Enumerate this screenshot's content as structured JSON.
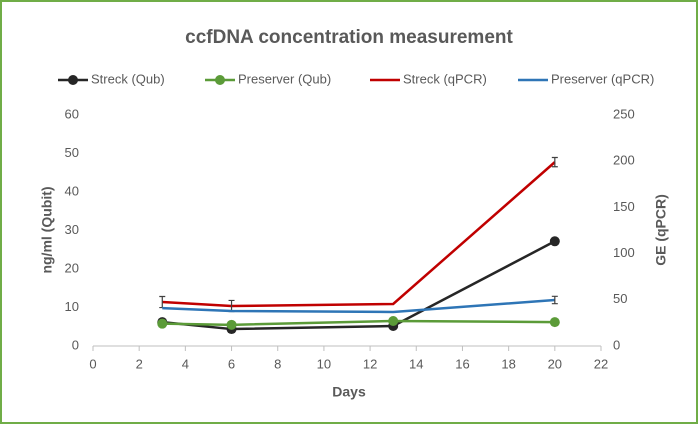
{
  "chart_data": {
    "type": "line",
    "title": "ccfDNA concentration measurement",
    "x_label": "Days",
    "y_label": "ng/ml (Qubit)",
    "y2_label": "GE (qPCR)",
    "x": [
      3,
      6,
      13,
      20
    ],
    "xlim": [
      0,
      22
    ],
    "xticks": [
      0,
      2,
      4,
      6,
      8,
      10,
      12,
      14,
      16,
      18,
      20,
      22
    ],
    "ylim": [
      0,
      60
    ],
    "yticks": [
      0,
      10,
      20,
      30,
      40,
      50,
      60
    ],
    "y2lim": [
      0,
      250
    ],
    "y2ticks": [
      0,
      50,
      100,
      150,
      200,
      250
    ],
    "legend": "top",
    "series": [
      {
        "name": "Streck (Qub)",
        "color": "#262626",
        "markers": true,
        "values": [
          6.2,
          4.4,
          5.2,
          27.2
        ]
      },
      {
        "name": "Preserver (Qub)",
        "color": "#5b9b38",
        "markers": true,
        "values": [
          5.8,
          5.5,
          6.5,
          6.2
        ]
      },
      {
        "name": "Streck (qPCR)",
        "color": "#c00000",
        "markers": false,
        "axis": "y2",
        "values": [
          47.6,
          43.3,
          45.5,
          199
        ],
        "errors": [
          6,
          6,
          null,
          5
        ]
      },
      {
        "name": "Preserver (qPCR)",
        "color": "#2e75b6",
        "markers": false,
        "axis": "y2",
        "values": [
          41,
          37.9,
          36.8,
          49.8
        ],
        "errors": [
          null,
          null,
          null,
          4
        ]
      }
    ]
  }
}
